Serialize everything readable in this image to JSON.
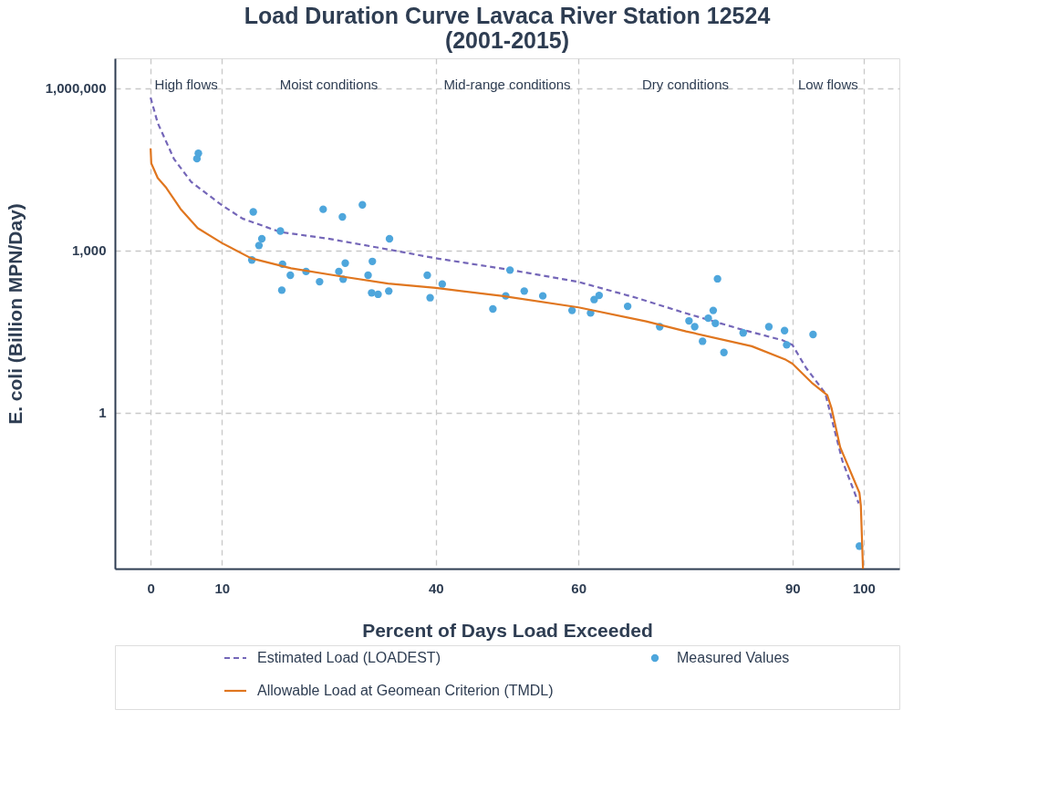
{
  "chart_data": {
    "type": "line",
    "title": "Load Duration Curve Lavaca River Station 12524\n(2001-2015)",
    "xlabel": "Percent of Days Load Exceeded",
    "ylabel": "E. coli (Billion MPN/Day)",
    "xlim": [
      -5,
      105
    ],
    "xticks": [
      0,
      10,
      40,
      60,
      90,
      100
    ],
    "ylim": [
      0.0013,
      3600000
    ],
    "yticks": [
      {
        "value": 1,
        "label": "1"
      },
      {
        "value": 1000,
        "label": "1,000"
      },
      {
        "value": 1000000,
        "label": "1,000,000"
      }
    ],
    "log": "y",
    "grid": true,
    "legend": "bottom",
    "annotations": [
      "High flows",
      "Moist conditions",
      "Mid-range conditions",
      "Dry conditions",
      "Low flows"
    ],
    "series": [
      {
        "name": "Estimated Load (LOADEST)",
        "line_style": "dashed",
        "marker": "none",
        "color": "#7466b8",
        "x": [
          0,
          1,
          3.3,
          5.7,
          10,
          12.9,
          18.2,
          24.9,
          33.3,
          40,
          50.4,
          60,
          68,
          75.1,
          83.1,
          88.6,
          90,
          91.9,
          94.6,
          97,
          99.3
        ],
        "values": [
          676000,
          229000,
          49000,
          18600,
          6900,
          3900,
          2200,
          1660,
          1050,
          720,
          440,
          263,
          135,
          69,
          34,
          22,
          18,
          6.8,
          2.3,
          0.13,
          0.021
        ]
      },
      {
        "name": "Measured Values",
        "type": "scatter",
        "marker": "circle",
        "color": "#4ea6dc",
        "x": [
          6.5,
          6.7,
          14.4,
          14.2,
          15.6,
          15.2,
          18.2,
          18.5,
          18.4,
          19.6,
          21.8,
          23.7,
          24.2,
          26.4,
          26.9,
          27.0,
          27.3,
          29.7,
          30.5,
          31.0,
          31.1,
          31.9,
          33.4,
          33.5,
          38.8,
          39.2,
          40.9,
          48.0,
          49.8,
          50.4,
          52.4,
          55.0,
          59.1,
          61.7,
          62.2,
          62.9,
          66.9,
          71.4,
          75.5,
          76.3,
          77.4,
          78.2,
          78.9,
          79.2,
          79.5,
          80.4,
          83.1,
          86.7,
          88.9,
          89.2,
          92.9,
          99.4
        ],
        "values": [
          50000,
          63000,
          5200,
          670,
          1650,
          1240,
          2300,
          560,
          185,
          350,
          410,
          265,
          5800,
          410,
          4200,
          295,
          585,
          7000,
          350,
          165,
          630,
          155,
          178,
          1650,
          350,
          134,
          240,
          83,
          145,
          435,
          178,
          145,
          78,
          70,
          124,
          148,
          93,
          39,
          50,
          39,
          21,
          56,
          78,
          45,
          300,
          13,
          30,
          39,
          33,
          18,
          28,
          0.0034
        ]
      },
      {
        "name": "Allowable Load at Geomean Criterion (TMDL)",
        "line_style": "solid",
        "marker": "none",
        "color": "#e0761f",
        "x": [
          0,
          0.1,
          1,
          2.2,
          4.2,
          6.6,
          10,
          14.1,
          19.7,
          26.9,
          33.3,
          40,
          49.2,
          60,
          69.5,
          75.1,
          84.3,
          89.1,
          90,
          92.7,
          94.9,
          95.5,
          96.7,
          99.4,
          99.6,
          99.9
        ],
        "values": [
          78000,
          41000,
          22000,
          14500,
          5900,
          2600,
          1380,
          720,
          470,
          330,
          245,
          204,
          145,
          89,
          49,
          32,
          17,
          9.5,
          8.1,
          3.6,
          2.1,
          1.2,
          0.23,
          0.033,
          0.019,
          0.0013
        ]
      }
    ]
  }
}
